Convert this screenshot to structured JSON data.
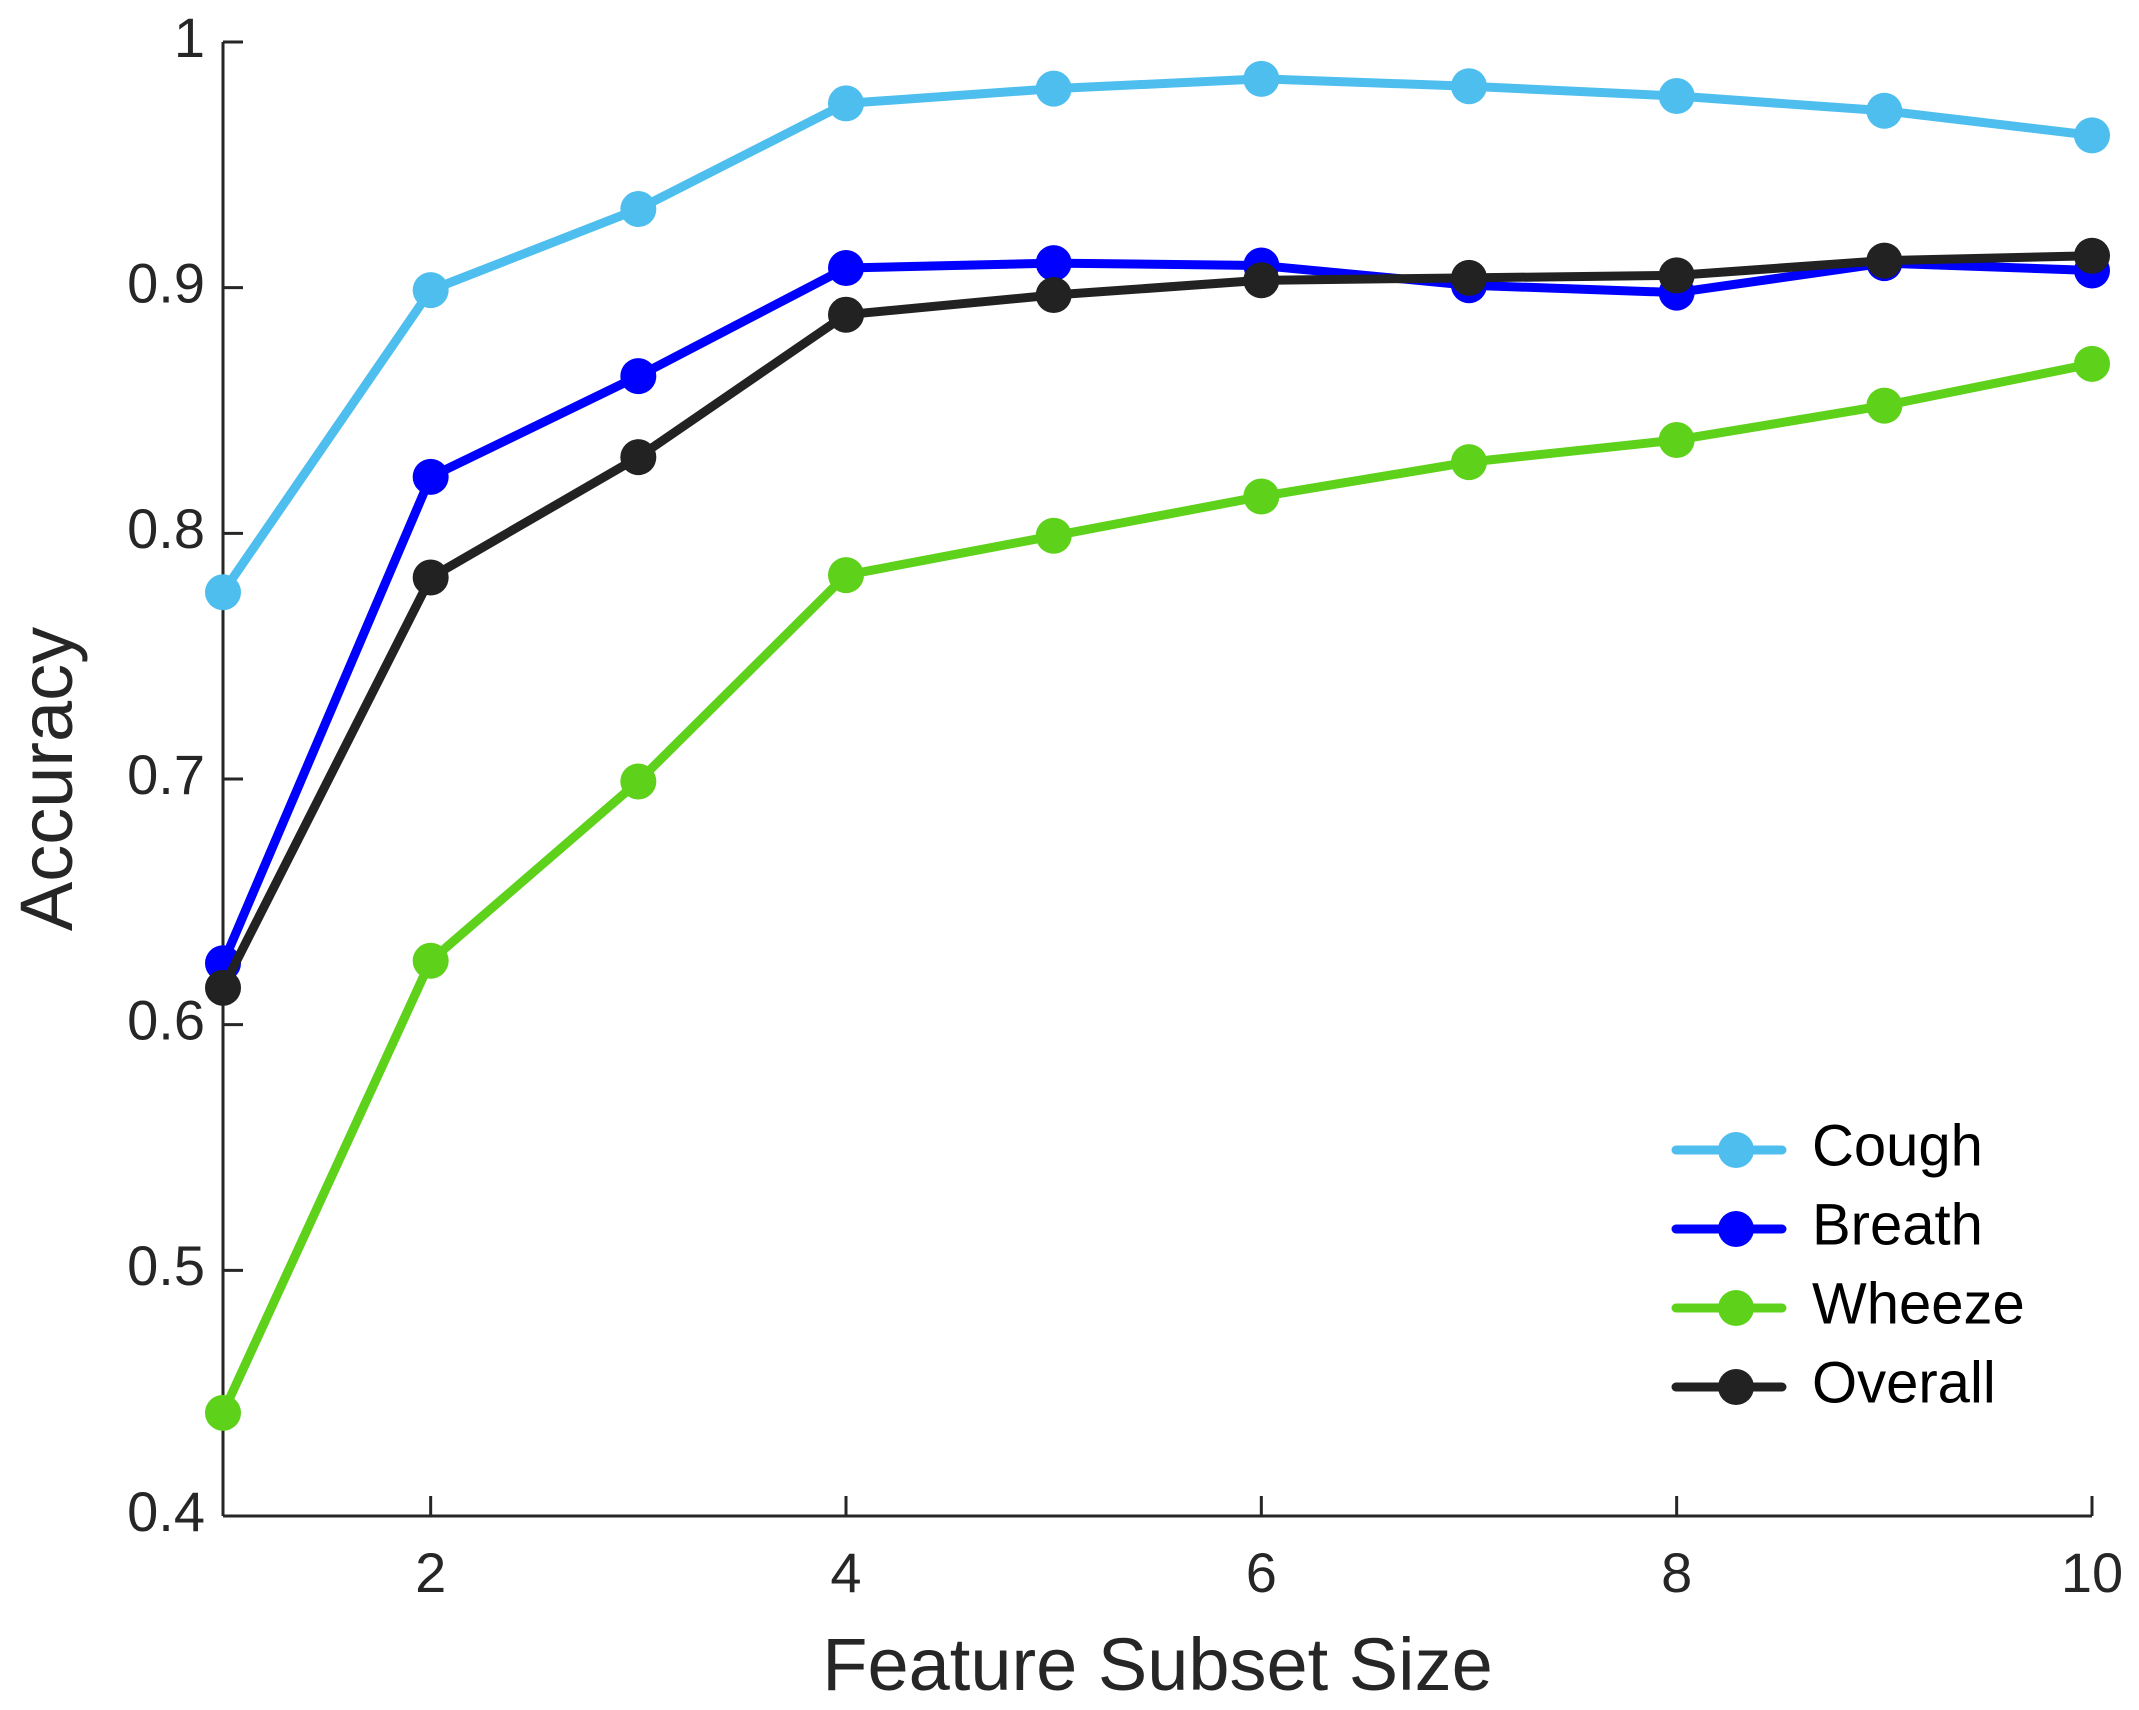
{
  "chart_data": {
    "type": "line",
    "xlabel": "Feature Subset Size",
    "ylabel": "Accuracy",
    "xlim": [
      1,
      10
    ],
    "ylim": [
      0.4,
      1.0
    ],
    "x_ticks": [
      2,
      4,
      6,
      8,
      10
    ],
    "x_tick_labels": [
      "2",
      "4",
      "6",
      "8",
      "10"
    ],
    "y_ticks": [
      0.4,
      0.5,
      0.6,
      0.7,
      0.8,
      0.9,
      1.0
    ],
    "y_tick_labels": [
      "0.4",
      "0.5",
      "0.6",
      "0.7",
      "0.8",
      "0.9",
      "1"
    ],
    "grid": false,
    "legend_position": "bottom-right",
    "x": [
      1,
      2,
      3,
      4,
      5,
      6,
      7,
      8,
      9,
      10
    ],
    "series": [
      {
        "name": "Cough",
        "color": "#4dbeee",
        "values": [
          0.776,
          0.899,
          0.932,
          0.975,
          0.981,
          0.985,
          0.982,
          0.978,
          0.972,
          0.962
        ]
      },
      {
        "name": "Breath",
        "color": "#0000ff",
        "values": [
          0.625,
          0.823,
          0.864,
          0.908,
          0.91,
          0.909,
          0.901,
          0.898,
          0.91,
          0.907
        ]
      },
      {
        "name": "Wheeze",
        "color": "#5ed11a",
        "values": [
          0.442,
          0.626,
          0.699,
          0.783,
          0.799,
          0.815,
          0.829,
          0.838,
          0.852,
          0.869
        ]
      },
      {
        "name": "Overall",
        "color": "#222222",
        "values": [
          0.615,
          0.782,
          0.831,
          0.889,
          0.897,
          0.903,
          0.904,
          0.905,
          0.911,
          0.913
        ]
      }
    ]
  }
}
